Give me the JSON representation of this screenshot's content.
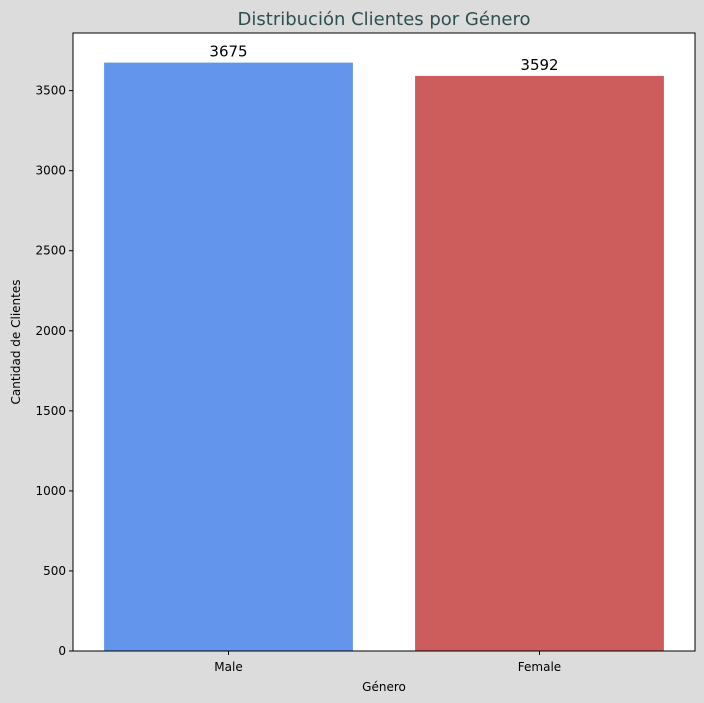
{
  "chart_data": {
    "type": "bar",
    "title": "Distribución Clientes por Género",
    "xlabel": "Género",
    "ylabel": "Cantidad de Clientes",
    "categories": [
      "Male",
      "Female"
    ],
    "values": [
      3675,
      3592
    ],
    "data_labels": [
      "3675",
      "3592"
    ],
    "ylim": [
      0,
      3860
    ],
    "yticks": [
      0,
      500,
      1000,
      1500,
      2000,
      2500,
      3000,
      3500
    ],
    "ytick_labels": [
      "0",
      "500",
      "1000",
      "1500",
      "2000",
      "2500",
      "3000",
      "3500"
    ],
    "grid": false,
    "legend": "none",
    "colors": {
      "bars": [
        "#6495ed",
        "#cd5c5c"
      ],
      "title": "#2f4f4f",
      "figure_background": "#dcdcdc",
      "plot_background": "#ffffff"
    }
  }
}
